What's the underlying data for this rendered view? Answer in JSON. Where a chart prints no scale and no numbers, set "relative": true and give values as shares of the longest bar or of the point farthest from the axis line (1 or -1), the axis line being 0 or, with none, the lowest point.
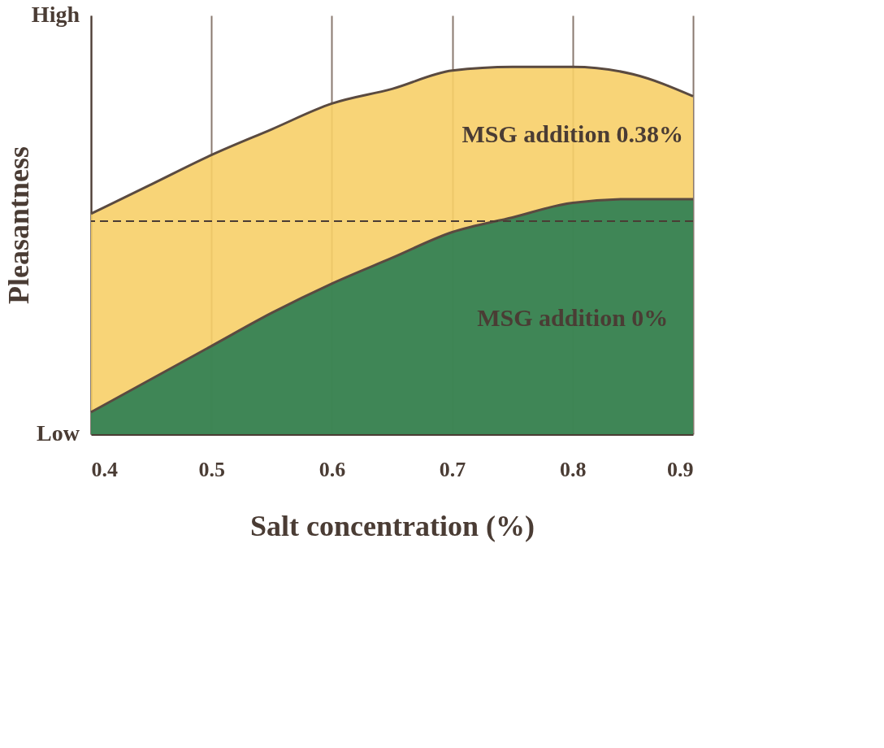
{
  "chart_data": {
    "type": "area",
    "relative": true,
    "xlabel": "Salt concentration (%)",
    "ylabel": "Pleasantness",
    "x": [
      0.4,
      0.45,
      0.5,
      0.55,
      0.6,
      0.65,
      0.7,
      0.75,
      0.8,
      0.85,
      0.9
    ],
    "series": [
      {
        "name": "MSG addition 0.38%",
        "color": "#f7cf68",
        "values": [
          0.6,
          0.68,
          0.76,
          0.83,
          0.9,
          0.94,
          0.99,
          1,
          1,
          0.98,
          0.92
        ]
      },
      {
        "name": "MSG addition 0%",
        "color": "#2a7d52",
        "values": [
          0.06,
          0.15,
          0.24,
          0.33,
          0.41,
          0.48,
          0.55,
          0.59,
          0.63,
          0.64,
          0.64
        ]
      }
    ],
    "xlim": [
      0.4,
      0.9
    ],
    "xticks": [
      0.4,
      0.5,
      0.6,
      0.7,
      0.8,
      0.9
    ],
    "grid": "x",
    "ref_lines": [
      {
        "axis": "y",
        "value": 0.58,
        "line_style": "dashed",
        "color": "#4a3c34"
      }
    ],
    "annotations": [
      "High",
      "Low"
    ]
  }
}
